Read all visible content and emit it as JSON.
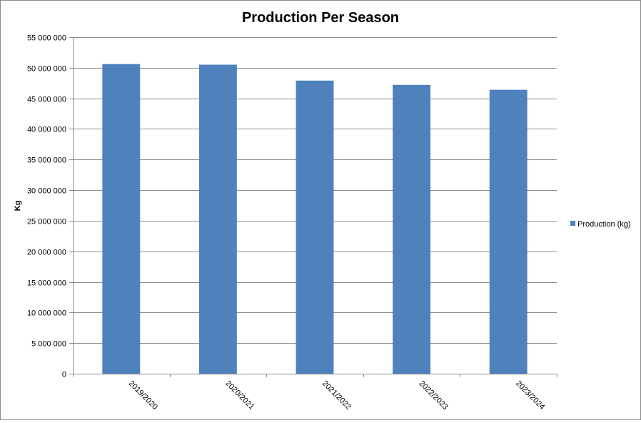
{
  "chart_data": {
    "type": "bar",
    "title": "Production Per Season",
    "xlabel": "",
    "ylabel": "Kg",
    "categories": [
      "2019/2020",
      "2020/2021",
      "2021/2022",
      "2022/2023",
      "2023/2024"
    ],
    "series": [
      {
        "name": "Production (kg)",
        "color": "#4F81BD",
        "values": [
          50600000,
          50500000,
          47900000,
          47200000,
          46400000
        ]
      }
    ],
    "ylim": [
      0,
      55000000
    ],
    "ytick_step": 5000000,
    "ytick_labels": [
      "0",
      "5 000 000",
      "10 000 000",
      "15 000 000",
      "20 000 000",
      "25 000 000",
      "30 000 000",
      "35 000 000",
      "40 000 000",
      "45 000 000",
      "50 000 000",
      "55 000 000"
    ],
    "grid": true,
    "legend": "right"
  }
}
